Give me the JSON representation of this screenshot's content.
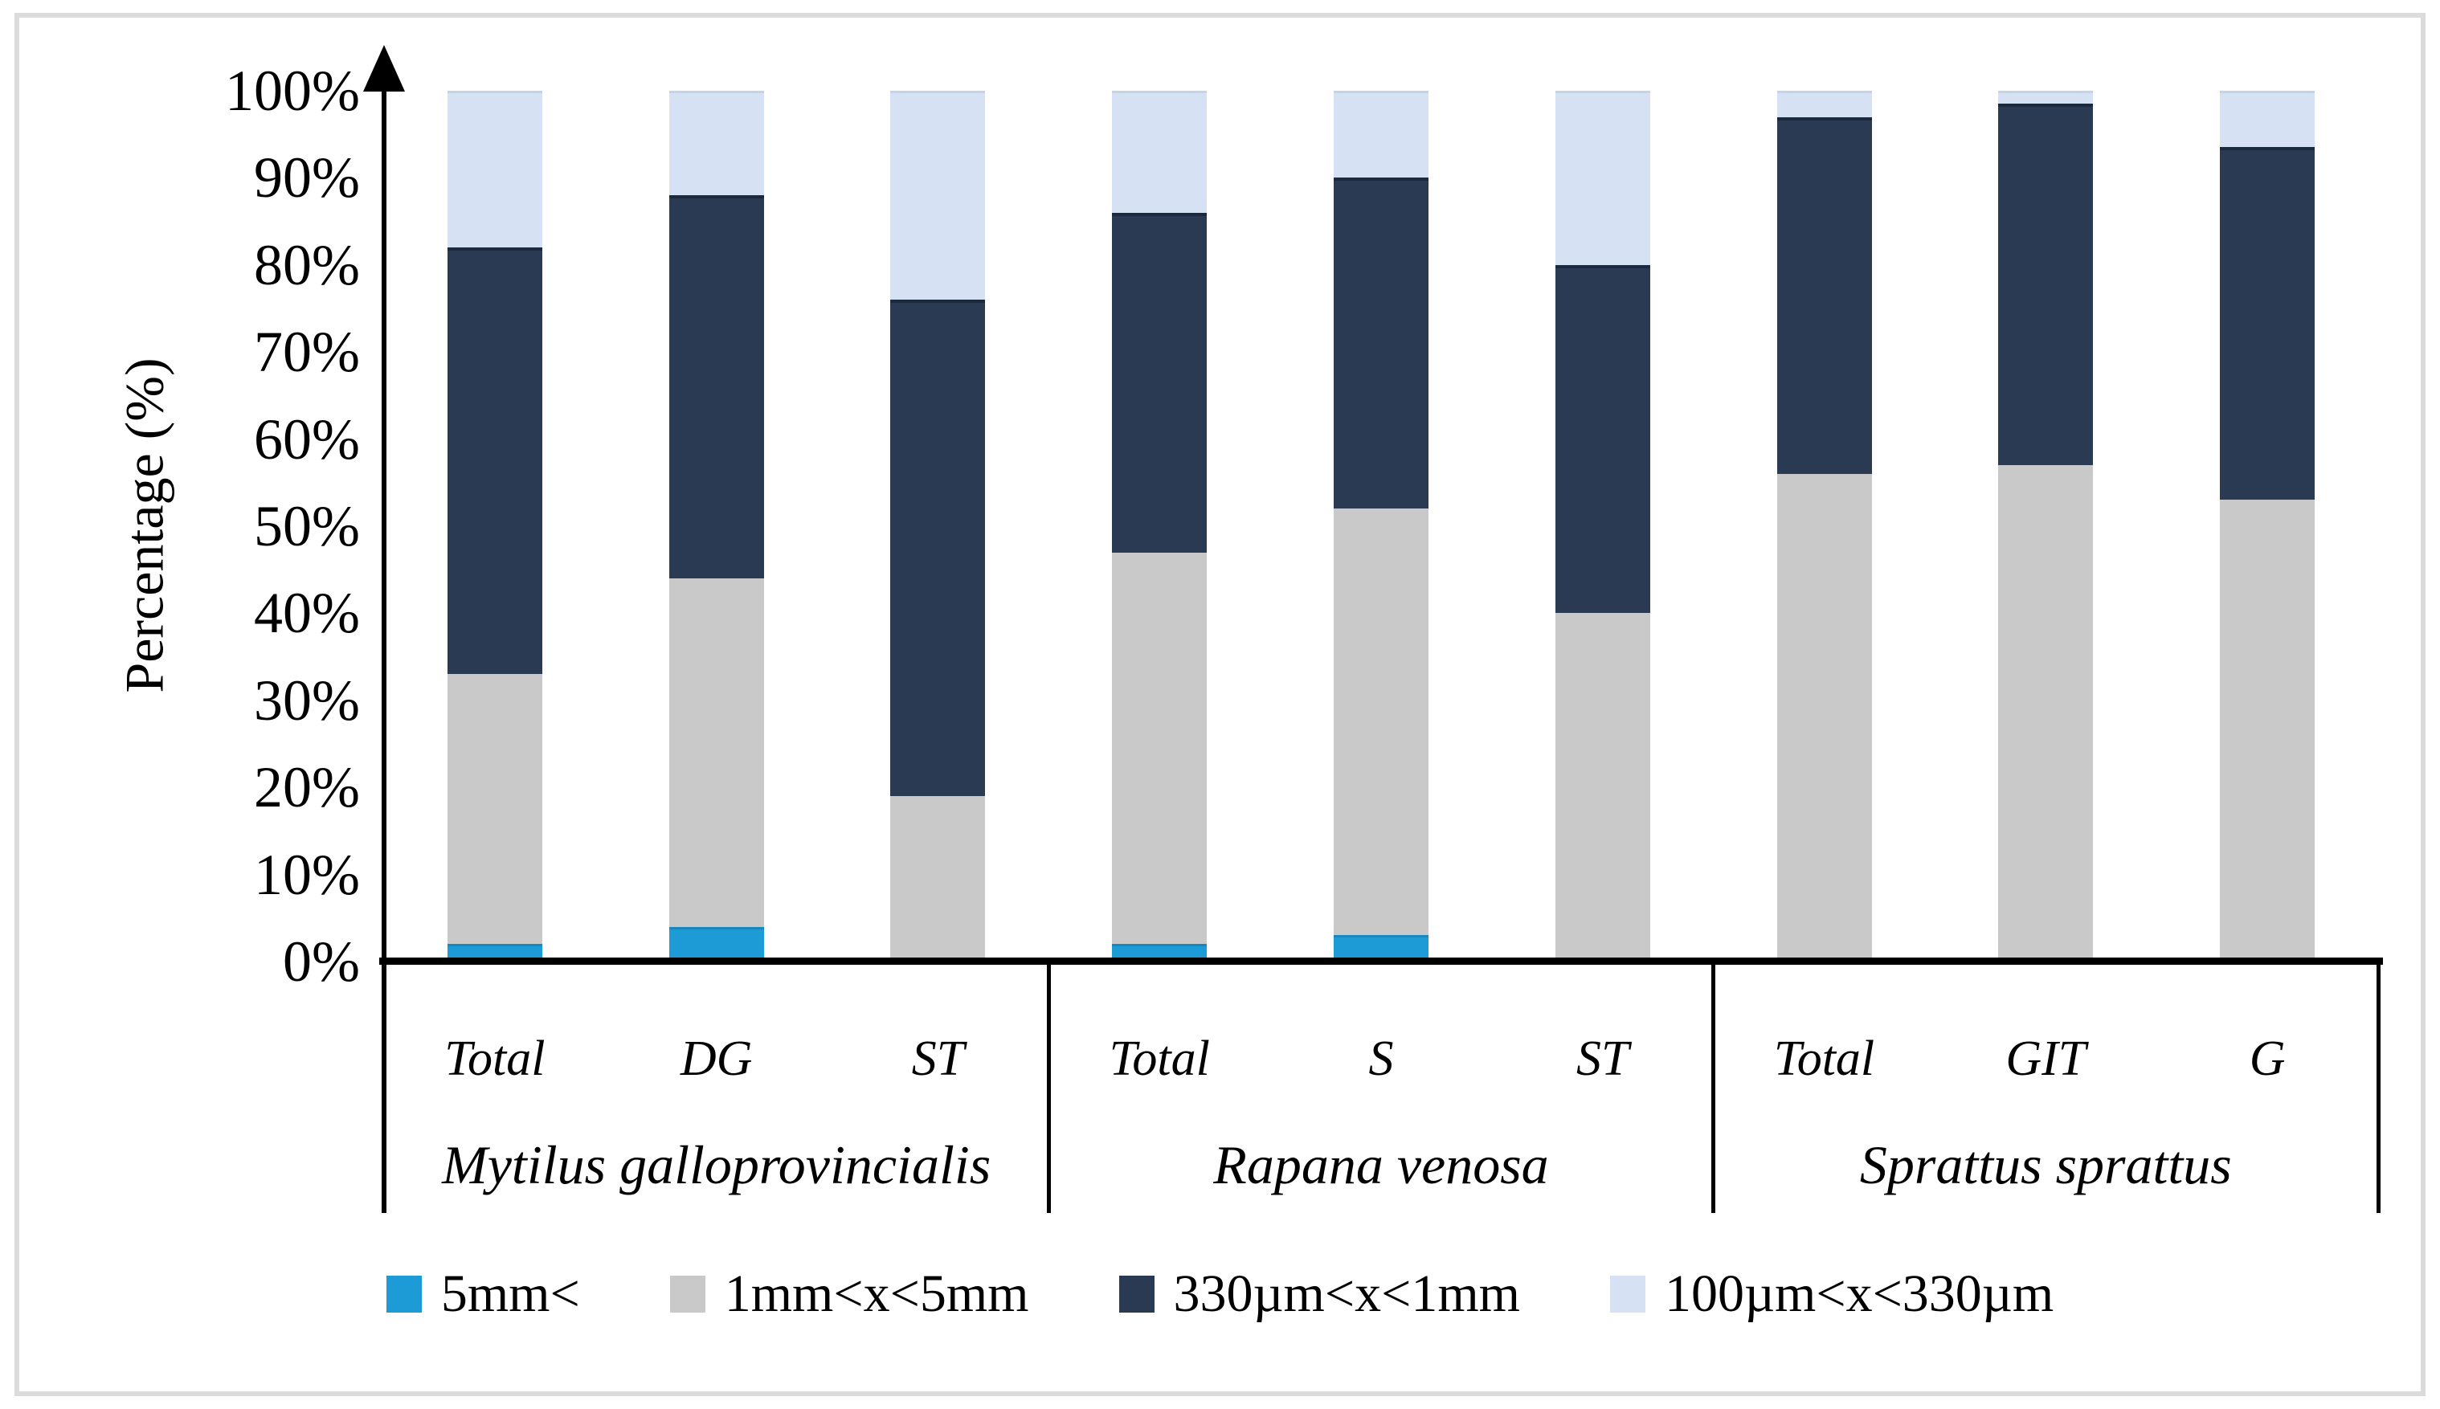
{
  "chart_data": {
    "type": "bar",
    "stacked": true,
    "title": "",
    "ylabel": "Percentage (%)",
    "ylim": [
      0,
      100
    ],
    "yticks": [
      "0%",
      "10%",
      "20%",
      "30%",
      "40%",
      "50%",
      "60%",
      "70%",
      "80%",
      "90%",
      "100%"
    ],
    "grid": false,
    "legend_position": "bottom",
    "categories": [
      "Total",
      "DG",
      "ST",
      "Total",
      "S",
      "ST",
      "Total",
      "GIT",
      "G"
    ],
    "groups": [
      {
        "species": "Mytilus galloprovincialis",
        "tissues": [
          "Total",
          "DG",
          "ST"
        ]
      },
      {
        "species": "Rapana venosa",
        "tissues": [
          "Total",
          "S",
          "ST"
        ]
      },
      {
        "species": "Sprattus sprattus",
        "tissues": [
          "Total",
          "GIT",
          "G"
        ]
      }
    ],
    "series": [
      {
        "name": "5mm<",
        "color": "#1D9BD7",
        "values": [
          2,
          4,
          0,
          2,
          3,
          0,
          0,
          0,
          0
        ]
      },
      {
        "name": "1mm<x<5mm",
        "color": "#C9C9C9",
        "values": [
          31,
          40,
          19,
          45,
          49,
          40,
          56,
          57,
          53
        ]
      },
      {
        "name": "330µm<x<1mm",
        "color": "#293A52",
        "values": [
          49,
          44,
          57,
          39,
          38,
          40,
          41,
          41.5,
          40.5
        ]
      },
      {
        "name": "100µm<x<330µm",
        "color": "#D6E2F4",
        "values": [
          18,
          12,
          24,
          14,
          10,
          20,
          3,
          1.5,
          6.5
        ]
      }
    ],
    "colors": {
      "axis": "#000000",
      "frame_border": "#DBDBDB"
    }
  }
}
